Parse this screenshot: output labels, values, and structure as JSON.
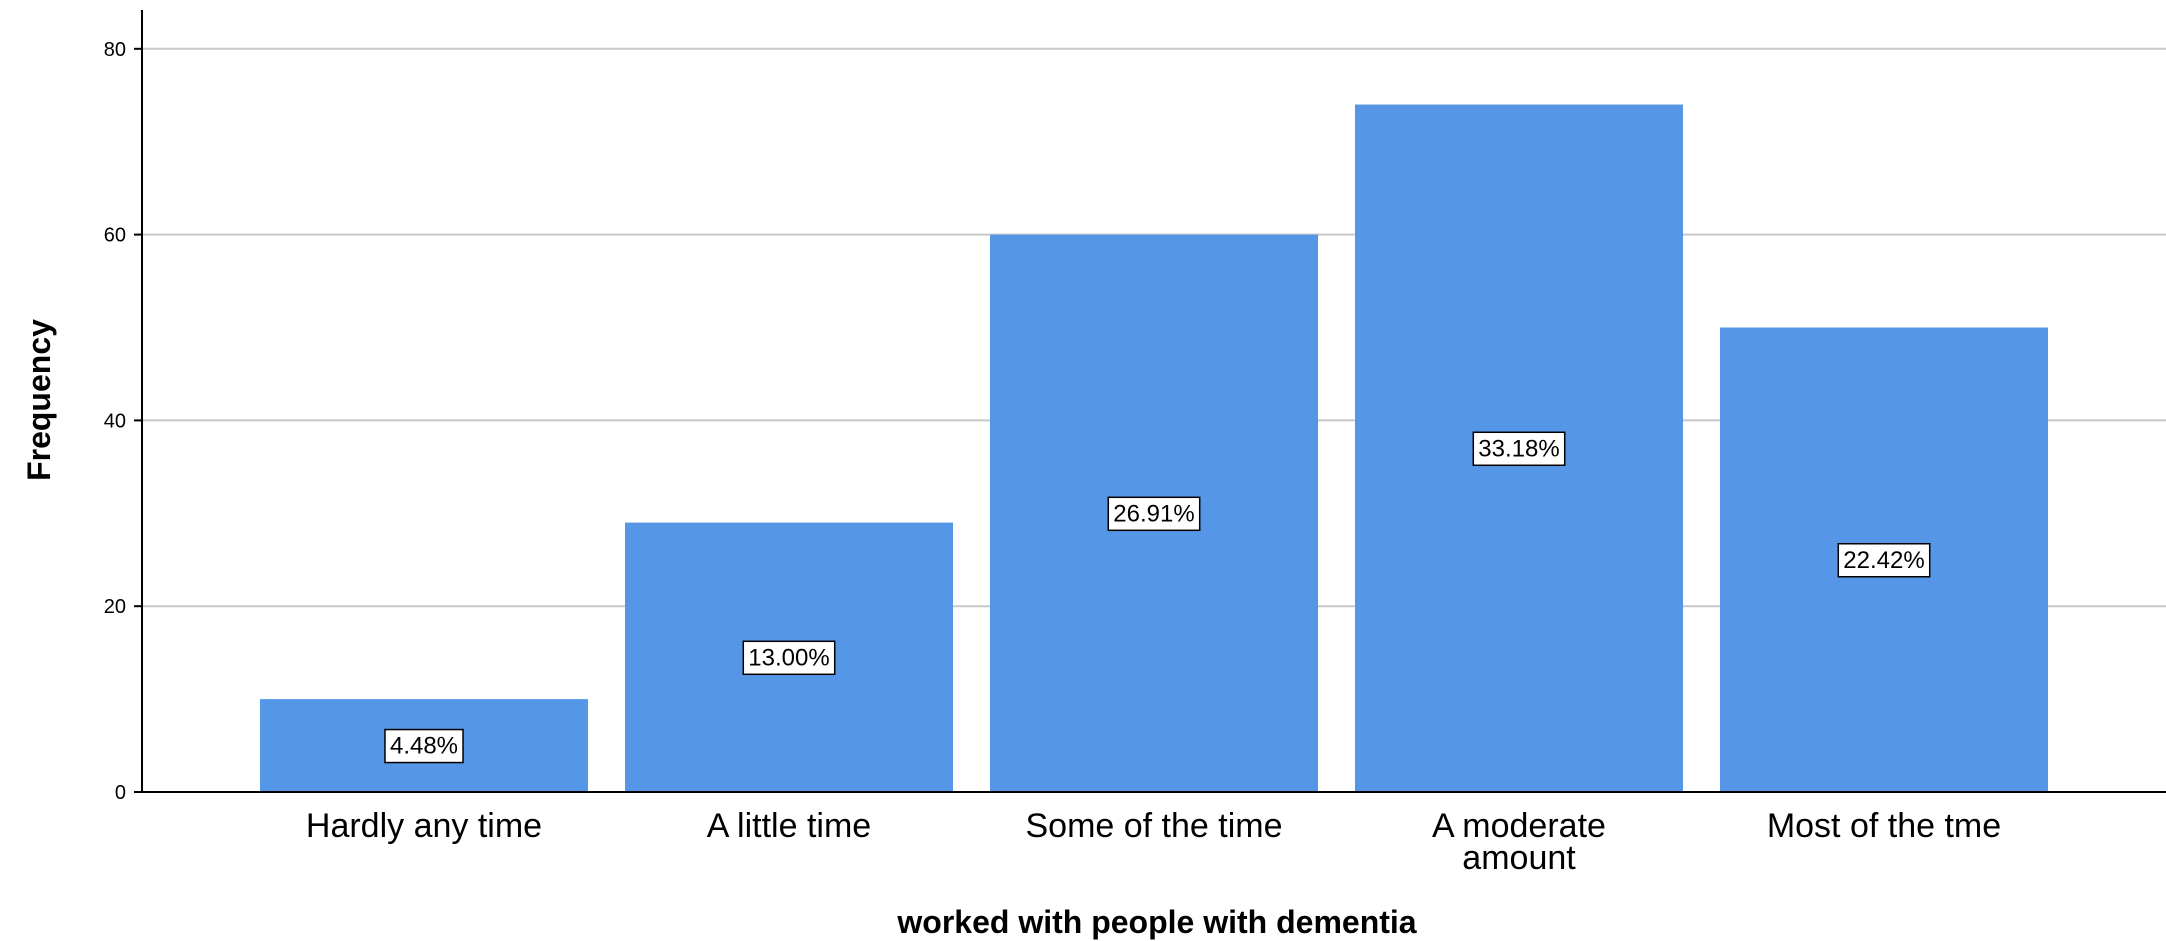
{
  "chart_data": {
    "type": "bar",
    "title": "",
    "xlabel": "worked with people with dementia",
    "ylabel": "Frequency",
    "categories": [
      "Hardly any time",
      "A little time",
      "Some of the time",
      "A moderate amount",
      "Most of the tme"
    ],
    "category_display": [
      [
        "Hardly any time"
      ],
      [
        "A little time"
      ],
      [
        "Some of the time"
      ],
      [
        "A moderate",
        "amount"
      ],
      [
        "Most of the tme"
      ]
    ],
    "values": [
      10,
      29,
      60,
      74,
      50
    ],
    "percent_labels": [
      "4.48%",
      "13.00%",
      "26.91%",
      "33.18%",
      "22.42%"
    ],
    "ylim": [
      0,
      84
    ],
    "yticks": [
      0,
      20,
      40,
      60,
      80
    ],
    "grid": true,
    "legend": "none",
    "colors": {
      "bar": "#5596e6",
      "grid": "#c8c8c8",
      "axis": "#000000",
      "label_box": "#ffffff"
    }
  }
}
